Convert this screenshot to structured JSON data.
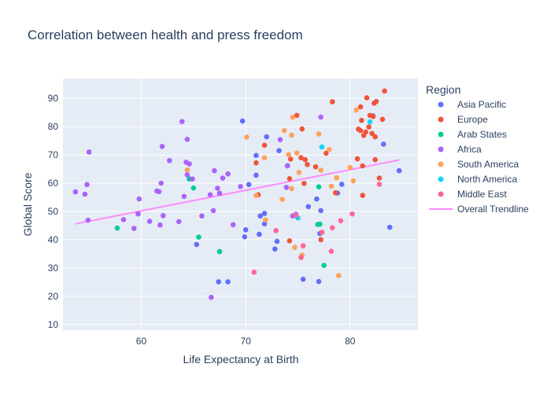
{
  "chart_data": {
    "type": "scatter",
    "title": "Correlation between health and press freedom",
    "xlabel": "Life Expectancy at Birth",
    "ylabel": "Global Score",
    "xlim": [
      52.5,
      86.5
    ],
    "ylim": [
      8,
      97
    ],
    "x_ticks": [
      60,
      70,
      80
    ],
    "y_ticks": [
      10,
      20,
      30,
      40,
      50,
      60,
      70,
      80,
      90
    ],
    "grid": true,
    "legend": {
      "title": "Region",
      "placement": "right"
    },
    "background": "#e5ecf6",
    "series": [
      {
        "name": "Asia Pacific",
        "color": "#636efa",
        "points": [
          [
            65.3,
            38.3
          ],
          [
            67.4,
            25.1
          ],
          [
            68.3,
            25.1
          ],
          [
            69.7,
            82.0
          ],
          [
            69.9,
            41.0
          ],
          [
            70.0,
            43.5
          ],
          [
            70.3,
            59.5
          ],
          [
            71.0,
            62.8
          ],
          [
            71.0,
            69.8
          ],
          [
            71.3,
            41.9
          ],
          [
            71.4,
            48.4
          ],
          [
            71.8,
            49.3
          ],
          [
            71.8,
            45.6
          ],
          [
            72.0,
            76.4
          ],
          [
            72.8,
            36.7
          ],
          [
            73.0,
            39.4
          ],
          [
            73.2,
            71.5
          ],
          [
            74.0,
            66.2
          ],
          [
            75.5,
            26.0
          ],
          [
            76.0,
            51.7
          ],
          [
            76.8,
            54.4
          ],
          [
            77.1,
            42.2
          ],
          [
            77.2,
            50.3
          ],
          [
            77.0,
            25.2
          ],
          [
            78.8,
            56.5
          ],
          [
            79.2,
            59.6
          ],
          [
            82.2,
            83.8
          ],
          [
            83.2,
            73.8
          ],
          [
            83.8,
            44.4
          ],
          [
            84.7,
            64.4
          ]
        ]
      },
      {
        "name": "Europe",
        "color": "#ef553b",
        "points": [
          [
            71.0,
            67.2
          ],
          [
            71.2,
            55.9
          ],
          [
            71.8,
            73.4
          ],
          [
            74.2,
            61.6
          ],
          [
            74.3,
            68.5
          ],
          [
            74.2,
            39.6
          ],
          [
            74.9,
            84.0
          ],
          [
            75.3,
            69.0
          ],
          [
            75.4,
            79.2
          ],
          [
            75.6,
            59.9
          ],
          [
            75.7,
            68.3
          ],
          [
            75.9,
            66.6
          ],
          [
            76.7,
            65.8
          ],
          [
            77.2,
            40.0
          ],
          [
            77.7,
            70.6
          ],
          [
            78.3,
            88.8
          ],
          [
            78.6,
            56.6
          ],
          [
            80.7,
            68.6
          ],
          [
            80.8,
            79.1
          ],
          [
            81.0,
            87.0
          ],
          [
            81.1,
            82.2
          ],
          [
            81.0,
            78.6
          ],
          [
            81.2,
            66.1
          ],
          [
            81.2,
            55.7
          ],
          [
            81.3,
            76.9
          ],
          [
            81.5,
            78.1
          ],
          [
            81.6,
            90.2
          ],
          [
            81.8,
            79.9
          ],
          [
            81.9,
            84.0
          ],
          [
            82.1,
            77.6
          ],
          [
            82.2,
            83.6
          ],
          [
            82.3,
            88.3
          ],
          [
            82.4,
            76.4
          ],
          [
            82.5,
            88.9
          ],
          [
            82.4,
            68.3
          ],
          [
            82.8,
            61.8
          ],
          [
            83.1,
            82.6
          ],
          [
            83.3,
            92.6
          ]
        ]
      },
      {
        "name": "Arab States",
        "color": "#00cc96",
        "points": [
          [
            57.7,
            44.1
          ],
          [
            64.6,
            61.5
          ],
          [
            65.0,
            58.3
          ],
          [
            65.5,
            40.9
          ],
          [
            67.5,
            35.8
          ],
          [
            76.9,
            45.4
          ],
          [
            77.1,
            45.5
          ],
          [
            77.0,
            58.7
          ],
          [
            77.5,
            30.9
          ]
        ]
      },
      {
        "name": "Africa",
        "color": "#ab63fa",
        "points": [
          [
            53.7,
            56.9
          ],
          [
            54.6,
            56.1
          ],
          [
            54.8,
            59.5
          ],
          [
            54.9,
            46.9
          ],
          [
            55.0,
            71.0
          ],
          [
            58.3,
            47.1
          ],
          [
            59.3,
            44.0
          ],
          [
            59.7,
            49.1
          ],
          [
            59.8,
            54.4
          ],
          [
            60.8,
            46.5
          ],
          [
            61.5,
            57.2
          ],
          [
            61.7,
            57.0
          ],
          [
            61.8,
            45.2
          ],
          [
            62.0,
            73.0
          ],
          [
            61.9,
            60.0
          ],
          [
            62.1,
            48.5
          ],
          [
            62.7,
            68.0
          ],
          [
            63.6,
            46.4
          ],
          [
            63.9,
            81.8
          ],
          [
            64.1,
            55.3
          ],
          [
            64.3,
            67.4
          ],
          [
            64.4,
            75.5
          ],
          [
            64.4,
            63.0
          ],
          [
            64.6,
            66.8
          ],
          [
            64.9,
            61.5
          ],
          [
            65.8,
            48.4
          ],
          [
            66.6,
            55.9
          ],
          [
            66.9,
            50.3
          ],
          [
            67.0,
            64.4
          ],
          [
            67.3,
            58.2
          ],
          [
            67.5,
            56.4
          ],
          [
            67.8,
            61.8
          ],
          [
            68.3,
            63.3
          ],
          [
            68.8,
            45.3
          ],
          [
            69.5,
            58.8
          ],
          [
            73.3,
            75.4
          ],
          [
            73.9,
            58.5
          ],
          [
            74.0,
            66.1
          ],
          [
            74.5,
            48.4
          ],
          [
            74.8,
            49.0
          ],
          [
            77.2,
            83.4
          ],
          [
            66.7,
            19.6
          ]
        ]
      },
      {
        "name": "South America",
        "color": "#ffa15a",
        "points": [
          [
            64.4,
            64.7
          ],
          [
            70.1,
            76.3
          ],
          [
            71.0,
            55.6
          ],
          [
            71.8,
            69.0
          ],
          [
            71.9,
            47.0
          ],
          [
            73.5,
            54.3
          ],
          [
            73.7,
            78.6
          ],
          [
            74.1,
            70.1
          ],
          [
            74.4,
            58.1
          ],
          [
            74.4,
            77.0
          ],
          [
            74.5,
            83.3
          ],
          [
            74.7,
            37.3
          ],
          [
            74.9,
            70.7
          ],
          [
            75.1,
            63.8
          ],
          [
            75.4,
            34.5
          ],
          [
            77.0,
            77.4
          ],
          [
            77.2,
            64.6
          ],
          [
            78.0,
            71.9
          ],
          [
            78.2,
            58.9
          ],
          [
            78.7,
            61.9
          ],
          [
            78.9,
            27.3
          ],
          [
            80.0,
            65.6
          ],
          [
            80.3,
            60.8
          ],
          [
            80.6,
            85.9
          ]
        ]
      },
      {
        "name": "North America",
        "color": "#19d3f3",
        "points": [
          [
            75.0,
            47.7
          ],
          [
            77.3,
            72.8
          ],
          [
            81.9,
            81.7
          ]
        ]
      },
      {
        "name": "Middle  East",
        "color": "#ff6692",
        "points": [
          [
            70.8,
            28.5
          ],
          [
            72.9,
            43.2
          ],
          [
            74.8,
            48.6
          ],
          [
            75.3,
            33.7
          ],
          [
            75.5,
            37.8
          ],
          [
            77.3,
            42.6
          ],
          [
            78.2,
            35.9
          ],
          [
            78.3,
            44.2
          ],
          [
            79.1,
            46.7
          ],
          [
            80.2,
            49.1
          ],
          [
            82.8,
            59.6
          ]
        ]
      }
    ],
    "trendline": {
      "name": "Overall Trendline",
      "color": "#ff8aff",
      "x": [
        53.7,
        84.7
      ],
      "y": [
        45.6,
        68.2
      ]
    }
  }
}
